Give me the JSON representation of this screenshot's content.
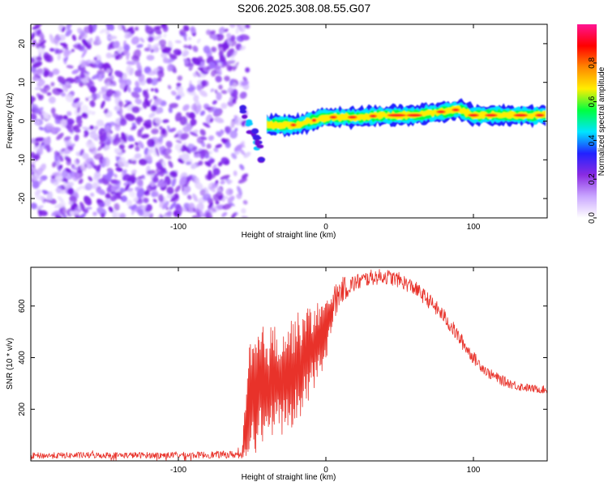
{
  "title": "S206.2025.308.08.55.G07",
  "chart_data": [
    {
      "type": "heatmap",
      "title": "S206.2025.308.08.55.G07",
      "xlabel": "Height of straight line (km)",
      "ylabel": "Frequency (Hz)",
      "xlim": [
        -200,
        150
      ],
      "ylim": [
        -25,
        25
      ],
      "xticks": [
        -100,
        0,
        100
      ],
      "xticklabels": [
        "-100",
        "0",
        "100"
      ],
      "yticks": [
        -20,
        -10,
        0,
        10,
        20
      ],
      "yticklabels": [
        "-20",
        "-10",
        "0",
        "10",
        "20"
      ],
      "colorbar": {
        "label": "Normalized spectral amplitude",
        "range": [
          0,
          1
        ],
        "ticks": [
          0.0,
          0.2,
          0.4,
          0.6,
          0.8
        ],
        "ticklabels": [
          "0.0",
          "0.2",
          "0.4",
          "0.6",
          "0.8"
        ],
        "colors": [
          "#ffffff",
          "#c9a6ff",
          "#8a2be2",
          "#2222ff",
          "#00e5ff",
          "#00ff40",
          "#ffee00",
          "#ff8800",
          "#ff0000",
          "#ff1493"
        ]
      },
      "noise_region_x": [
        -200,
        -57
      ],
      "transition_region_x": [
        -57,
        -40
      ],
      "signal_track": [
        {
          "x": -55,
          "y": 1
        },
        {
          "x": -50,
          "y": -3
        },
        {
          "x": -45,
          "y": -8
        },
        {
          "x": -40,
          "y": -1
        },
        {
          "x": -30,
          "y": -1
        },
        {
          "x": -20,
          "y": -1
        },
        {
          "x": -10,
          "y": 0
        },
        {
          "x": 0,
          "y": 1
        },
        {
          "x": 10,
          "y": 1
        },
        {
          "x": 20,
          "y": 1
        },
        {
          "x": 40,
          "y": 1.5
        },
        {
          "x": 60,
          "y": 1.5
        },
        {
          "x": 70,
          "y": 2
        },
        {
          "x": 80,
          "y": 2.5
        },
        {
          "x": 90,
          "y": 3
        },
        {
          "x": 100,
          "y": 1.5
        },
        {
          "x": 120,
          "y": 1.5
        },
        {
          "x": 150,
          "y": 1.5
        }
      ]
    },
    {
      "type": "line",
      "xlabel": "Height of straight line (km)",
      "ylabel": "SNR (10 * v/v)",
      "xlim": [
        -200,
        150
      ],
      "ylim": [
        0,
        750
      ],
      "xticks": [
        -100,
        0,
        100
      ],
      "xticklabels": [
        "-100",
        "0",
        "100"
      ],
      "yticks": [
        200,
        400,
        600
      ],
      "yticklabels": [
        "200",
        "400",
        "600"
      ],
      "color": "#e8322a",
      "envelope": {
        "x": [
          -200,
          -150,
          -100,
          -57,
          -52,
          -45,
          -35,
          -25,
          -15,
          -5,
          0,
          5,
          10,
          20,
          30,
          40,
          50,
          60,
          70,
          80,
          90,
          100,
          110,
          120,
          130,
          140,
          150
        ],
        "mean": [
          20,
          22,
          22,
          25,
          200,
          280,
          300,
          330,
          390,
          470,
          500,
          600,
          660,
          690,
          710,
          715,
          700,
          670,
          620,
          560,
          480,
          400,
          340,
          310,
          290,
          280,
          275
        ],
        "amp": [
          12,
          12,
          12,
          15,
          250,
          240,
          230,
          220,
          200,
          150,
          120,
          80,
          50,
          35,
          30,
          30,
          30,
          30,
          30,
          30,
          30,
          25,
          20,
          20,
          18,
          15,
          15
        ]
      }
    }
  ]
}
